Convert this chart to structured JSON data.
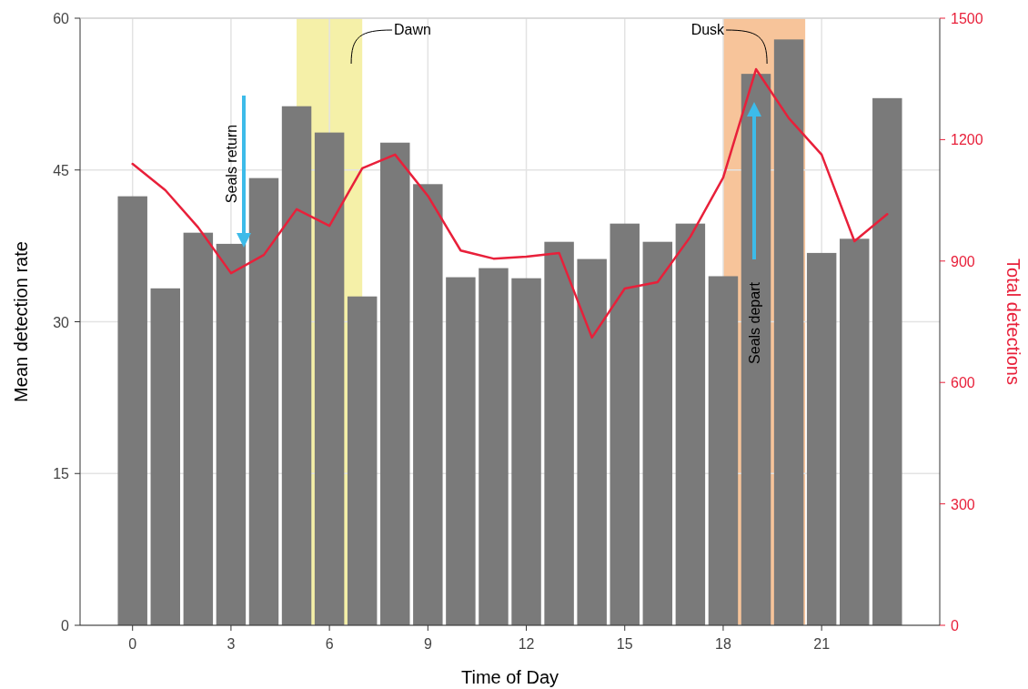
{
  "chart_data": {
    "type": "bar",
    "xlabel": "Time of Day",
    "ylabel": "Mean detection rate",
    "y2label": "Total detections",
    "x": [
      0,
      1,
      2,
      3,
      4,
      5,
      6,
      7,
      8,
      9,
      10,
      11,
      12,
      13,
      14,
      15,
      16,
      17,
      18,
      19,
      20,
      21,
      22,
      23
    ],
    "series": [
      {
        "color": "#7a7a7a",
        "values": [
          42.4,
          33.3,
          38.8,
          37.7,
          44.2,
          51.3,
          48.7,
          32.5,
          47.7,
          43.6,
          34.4,
          35.3,
          34.3,
          37.9,
          36.2,
          39.7,
          37.9,
          39.7,
          34.5,
          54.5,
          57.9,
          36.8,
          38.2,
          52.1
        ]
      },
      {
        "type": "line",
        "axis": "y2",
        "color": "#e8203a",
        "values": [
          1140,
          1075,
          983,
          870,
          915,
          1028,
          987,
          1129,
          1163,
          1061,
          926,
          906,
          911,
          920,
          711,
          832,
          848,
          960,
          1106,
          1374,
          1253,
          1163,
          949,
          1016
        ]
      }
    ],
    "xlim": [
      -1.6,
      24.6
    ],
    "xticks": [
      0,
      3,
      6,
      9,
      12,
      15,
      18,
      21
    ],
    "ylim": [
      0,
      60
    ],
    "yticks": [
      0,
      15,
      30,
      45,
      60
    ],
    "y2lim": [
      0,
      1500
    ],
    "y2ticks": [
      0,
      300,
      600,
      900,
      1200,
      1500
    ],
    "grid": true,
    "bands": [
      {
        "axis": "x",
        "from": 5,
        "to": 7,
        "label": "Dawn",
        "color": "#f5f0a8"
      },
      {
        "axis": "x",
        "from": 18,
        "to": 20.5,
        "label": "Dusk",
        "color": "#f7c49a"
      }
    ],
    "annotations": [
      "Seals return",
      "Seals depart"
    ]
  }
}
